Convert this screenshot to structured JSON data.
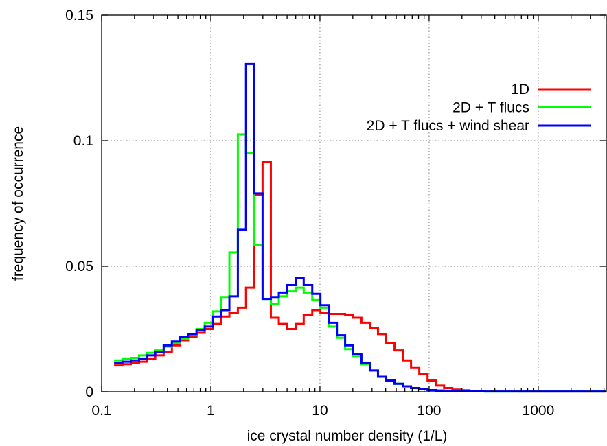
{
  "chart_data": {
    "type": "line",
    "step": true,
    "xscale": "log",
    "xlabel": "ice crystal number density (1/L)",
    "ylabel": "frequency of occurrence",
    "xlim": [
      0.1,
      4200
    ],
    "ylim": [
      0,
      0.15
    ],
    "xticks": [
      {
        "value": 0.1,
        "label": "0.1"
      },
      {
        "value": 1,
        "label": "1"
      },
      {
        "value": 10,
        "label": "10"
      },
      {
        "value": 100,
        "label": "100"
      },
      {
        "value": 1000,
        "label": "1000"
      }
    ],
    "yticks": [
      {
        "value": 0,
        "label": "0"
      },
      {
        "value": 0.05,
        "label": "0.05"
      },
      {
        "value": 0.1,
        "label": "0.1"
      },
      {
        "value": 0.15,
        "label": "0.15"
      }
    ],
    "grid": true,
    "legend_position": "top-right",
    "bin_edges": [
      0.13,
      0.155,
      0.185,
      0.22,
      0.26,
      0.31,
      0.37,
      0.44,
      0.52,
      0.62,
      0.74,
      0.88,
      1.05,
      1.25,
      1.48,
      1.77,
      2.1,
      2.5,
      2.98,
      3.55,
      4.2,
      5.0,
      6.0,
      7.1,
      8.5,
      10.1,
      12.0,
      14.3,
      17.0,
      20.2,
      24.0,
      28.6,
      34.0,
      40.5,
      48.2,
      57.4,
      68.3,
      81.3,
      96.8,
      115.2,
      137.1,
      163.2,
      194.3,
      231.2,
      275.2,
      327.5,
      389.8,
      464.0,
      552.2,
      657.3,
      782.3,
      931.1,
      1108.2,
      1319.0,
      1569.9,
      1868.5,
      2223.9,
      2647.0,
      3150.5,
      3749.7,
      4200
    ],
    "series": [
      {
        "name": "1D",
        "color": "#ff0000",
        "values": [
          0.0105,
          0.011,
          0.0115,
          0.012,
          0.013,
          0.0145,
          0.016,
          0.0185,
          0.0205,
          0.022,
          0.0235,
          0.025,
          0.027,
          0.03,
          0.0315,
          0.0335,
          0.0415,
          0.0785,
          0.0915,
          0.0295,
          0.027,
          0.025,
          0.027,
          0.0305,
          0.0325,
          0.0315,
          0.031,
          0.031,
          0.0305,
          0.0295,
          0.0275,
          0.0255,
          0.023,
          0.0195,
          0.0165,
          0.0125,
          0.0095,
          0.007,
          0.0045,
          0.0025,
          0.0015,
          0.0009,
          0.0006,
          0.0004,
          0.0003,
          0.00025,
          0.0002,
          0.00015,
          0.00012,
          0.0001,
          0.0001,
          0.0001,
          0.0001,
          0.0001,
          0.0001,
          0.0001,
          0.0001,
          0.0001,
          0.0001,
          0.0001
        ]
      },
      {
        "name": "2D + T flucs",
        "color": "#00ff00",
        "values": [
          0.0125,
          0.013,
          0.0135,
          0.0145,
          0.0155,
          0.0165,
          0.018,
          0.0195,
          0.021,
          0.0225,
          0.025,
          0.0275,
          0.032,
          0.0375,
          0.0555,
          0.1025,
          0.095,
          0.0585,
          0.037,
          0.035,
          0.038,
          0.04,
          0.0415,
          0.0395,
          0.0365,
          0.0335,
          0.026,
          0.0215,
          0.017,
          0.014,
          0.011,
          0.0085,
          0.006,
          0.0045,
          0.0032,
          0.0022,
          0.0015,
          0.001,
          0.0007,
          0.0005,
          0.0004,
          0.0003,
          0.00025,
          0.0002,
          0.00015,
          0.0001,
          0.0001,
          0.0001,
          0.0001,
          0.0001,
          0.0001,
          0.0001,
          0.0001,
          0.0001,
          0.0001,
          0.0001,
          0.0001,
          0.0001,
          0.0001,
          0.0001
        ]
      },
      {
        "name": "2D + T flucs + wind shear",
        "color": "#0000ff",
        "values": [
          0.0115,
          0.012,
          0.0125,
          0.013,
          0.0145,
          0.016,
          0.0185,
          0.02,
          0.022,
          0.023,
          0.0245,
          0.026,
          0.03,
          0.0325,
          0.038,
          0.0645,
          0.1305,
          0.079,
          0.037,
          0.0375,
          0.0395,
          0.0425,
          0.0455,
          0.0425,
          0.039,
          0.0345,
          0.0275,
          0.0225,
          0.0185,
          0.015,
          0.0115,
          0.0085,
          0.006,
          0.0045,
          0.0032,
          0.0022,
          0.0015,
          0.001,
          0.0007,
          0.0005,
          0.0004,
          0.0003,
          0.00025,
          0.0002,
          0.00015,
          0.0001,
          0.0001,
          0.0001,
          0.0001,
          0.0001,
          0.0001,
          0.0001,
          0.0001,
          0.0001,
          0.0001,
          0.0001,
          0.0001,
          0.0001,
          0.0001,
          0.0001
        ]
      }
    ]
  }
}
